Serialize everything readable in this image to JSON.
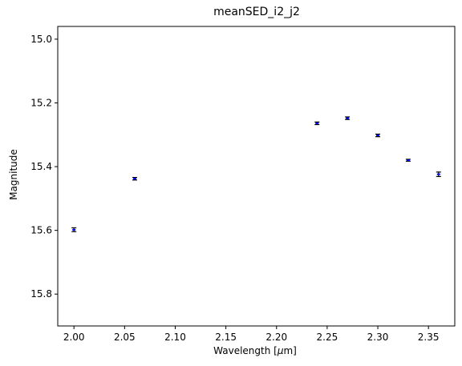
{
  "chart_data": {
    "type": "scatter",
    "title": "meanSED_i2_j2",
    "xlabel": "Wavelength [",
    "xlabel_mu": "μ",
    "xlabel_unit": "m]",
    "ylabel": "Magnitude",
    "xlim": [
      1.984,
      2.376
    ],
    "ylim": [
      15.9,
      14.96
    ],
    "y_inverted": true,
    "grid": false,
    "x_ticks": [
      "2.00",
      "2.05",
      "2.10",
      "2.15",
      "2.20",
      "2.25",
      "2.30",
      "2.35"
    ],
    "y_ticks": [
      "15.0",
      "15.2",
      "15.4",
      "15.6",
      "15.8"
    ],
    "series": [
      {
        "color": "#0000ff",
        "marker": "errorbar",
        "points": [
          {
            "x": 2.0,
            "y": 15.598,
            "err": 0.006
          },
          {
            "x": 2.06,
            "y": 15.438,
            "err": 0.004
          },
          {
            "x": 2.24,
            "y": 15.264,
            "err": 0.004
          },
          {
            "x": 2.27,
            "y": 15.248,
            "err": 0.004
          },
          {
            "x": 2.3,
            "y": 15.302,
            "err": 0.004
          },
          {
            "x": 2.33,
            "y": 15.38,
            "err": 0.003
          },
          {
            "x": 2.36,
            "y": 15.424,
            "err": 0.007
          }
        ]
      }
    ]
  }
}
